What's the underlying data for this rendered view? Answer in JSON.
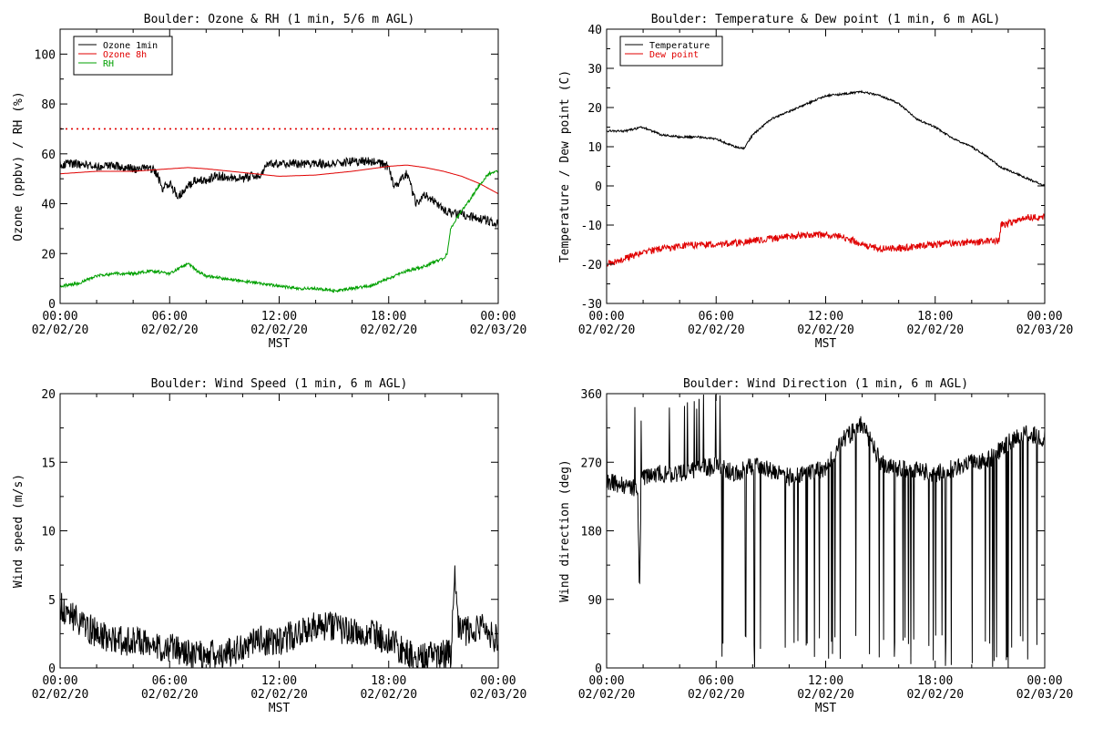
{
  "figure": {
    "colors": {
      "black": "#000000",
      "red": "#e00000",
      "green": "#00a000"
    }
  },
  "chart_data": [
    {
      "id": "ozone_rh",
      "type": "line",
      "title": "Boulder: Ozone & RH (1 min, 5/6 m AGL)",
      "xlabel": "MST",
      "ylabel": "Ozone (ppbv) / RH (%)",
      "xlim": [
        0,
        24
      ],
      "ylim": [
        0,
        110
      ],
      "x_ticks": [
        0,
        6,
        12,
        18,
        24
      ],
      "x_tick_labels": [
        [
          "00:00",
          "02/02/20"
        ],
        [
          "06:00",
          "02/02/20"
        ],
        [
          "12:00",
          "02/02/20"
        ],
        [
          "18:00",
          "02/02/20"
        ],
        [
          "00:00",
          "02/03/20"
        ]
      ],
      "y_ticks": [
        0,
        20,
        40,
        60,
        80,
        100
      ],
      "y_tick_labels": [
        "0",
        "20",
        "40",
        "60",
        "80",
        "100"
      ],
      "legend_position": "top-left",
      "reference_line": {
        "y": 70,
        "style": "dotted",
        "color": "#e00000"
      },
      "series": [
        {
          "name": "Ozone 1min",
          "color": "#000000",
          "noise": 1.8,
          "points": [
            [
              0,
              56
            ],
            [
              1,
              56
            ],
            [
              2,
              55
            ],
            [
              3,
              55
            ],
            [
              4,
              54
            ],
            [
              5,
              54
            ],
            [
              5.3,
              52
            ],
            [
              5.6,
              46
            ],
            [
              6,
              48
            ],
            [
              6.5,
              43
            ],
            [
              7,
              47
            ],
            [
              7.5,
              50
            ],
            [
              8,
              49
            ],
            [
              8.5,
              51
            ],
            [
              9,
              51
            ],
            [
              10,
              50
            ],
            [
              10.5,
              51
            ],
            [
              11,
              52
            ],
            [
              11.3,
              56
            ],
            [
              12,
              56
            ],
            [
              13,
              56
            ],
            [
              14,
              56
            ],
            [
              15,
              56
            ],
            [
              16,
              57
            ],
            [
              17,
              57
            ],
            [
              17.5,
              56
            ],
            [
              18,
              55
            ],
            [
              18.3,
              46
            ],
            [
              18.6,
              49
            ],
            [
              19,
              52
            ],
            [
              19.5,
              40
            ],
            [
              20,
              44
            ],
            [
              21,
              38
            ],
            [
              21.5,
              36
            ],
            [
              22,
              36
            ],
            [
              22.5,
              35
            ],
            [
              23,
              34
            ],
            [
              23.5,
              33
            ],
            [
              24,
              32
            ]
          ]
        },
        {
          "name": "Ozone 8h",
          "color": "#e00000",
          "noise": 0,
          "points": [
            [
              0,
              52
            ],
            [
              2,
              53
            ],
            [
              4,
              53
            ],
            [
              6,
              54
            ],
            [
              7,
              54.5
            ],
            [
              8,
              54
            ],
            [
              10,
              52.5
            ],
            [
              12,
              51
            ],
            [
              14,
              51.5
            ],
            [
              16,
              53
            ],
            [
              18,
              55
            ],
            [
              19,
              55.5
            ],
            [
              20,
              54.5
            ],
            [
              21,
              53
            ],
            [
              22,
              51
            ],
            [
              23,
              48
            ],
            [
              24,
              44
            ]
          ]
        },
        {
          "name": "RH",
          "color": "#00a000",
          "noise": 0.6,
          "points": [
            [
              0,
              7
            ],
            [
              1,
              8
            ],
            [
              2,
              11
            ],
            [
              3,
              12
            ],
            [
              4,
              12
            ],
            [
              5,
              13
            ],
            [
              6,
              12
            ],
            [
              6.5,
              14
            ],
            [
              7,
              16
            ],
            [
              7.5,
              13
            ],
            [
              8,
              11
            ],
            [
              9,
              10
            ],
            [
              10,
              9
            ],
            [
              11,
              8
            ],
            [
              12,
              7
            ],
            [
              13,
              6
            ],
            [
              14,
              6
            ],
            [
              15,
              5
            ],
            [
              16,
              6
            ],
            [
              17,
              7
            ],
            [
              18,
              10
            ],
            [
              19,
              13
            ],
            [
              20,
              15
            ],
            [
              21,
              18
            ],
            [
              21.2,
              20
            ],
            [
              21.4,
              30
            ],
            [
              21.7,
              34
            ],
            [
              22,
              37
            ],
            [
              22.5,
              42
            ],
            [
              23,
              48
            ],
            [
              23.5,
              52
            ],
            [
              24,
              53
            ]
          ]
        }
      ]
    },
    {
      "id": "temp_dew",
      "type": "line",
      "title": "Boulder: Temperature & Dew point (1 min, 6 m AGL)",
      "xlabel": "MST",
      "ylabel": "Temperature / Dew point (C)",
      "xlim": [
        0,
        24
      ],
      "ylim": [
        -30,
        40
      ],
      "x_ticks": [
        0,
        6,
        12,
        18,
        24
      ],
      "x_tick_labels": [
        [
          "00:00",
          "02/02/20"
        ],
        [
          "06:00",
          "02/02/20"
        ],
        [
          "12:00",
          "02/02/20"
        ],
        [
          "18:00",
          "02/02/20"
        ],
        [
          "00:00",
          "02/03/20"
        ]
      ],
      "y_ticks": [
        -30,
        -20,
        -10,
        0,
        10,
        20,
        30,
        40
      ],
      "y_tick_labels": [
        "-30",
        "-20",
        "-10",
        "0",
        "10",
        "20",
        "30",
        "40"
      ],
      "legend_position": "top-left",
      "series": [
        {
          "name": "Temperature",
          "color": "#000000",
          "noise": 0.25,
          "points": [
            [
              0,
              14
            ],
            [
              1,
              14
            ],
            [
              2,
              15
            ],
            [
              3,
              13
            ],
            [
              4,
              12.5
            ],
            [
              5,
              12.5
            ],
            [
              6,
              12
            ],
            [
              6.5,
              11
            ],
            [
              7,
              10
            ],
            [
              7.5,
              9.5
            ],
            [
              8,
              13
            ],
            [
              9,
              17
            ],
            [
              10,
              19
            ],
            [
              11,
              21
            ],
            [
              12,
              23
            ],
            [
              13,
              23.5
            ],
            [
              14,
              24
            ],
            [
              15,
              23
            ],
            [
              16,
              21
            ],
            [
              17,
              17
            ],
            [
              18,
              15
            ],
            [
              19,
              12
            ],
            [
              20,
              10
            ],
            [
              21,
              7
            ],
            [
              21.5,
              5
            ],
            [
              22,
              4
            ],
            [
              23,
              2
            ],
            [
              24,
              0
            ]
          ]
        },
        {
          "name": "Dew point",
          "color": "#e00000",
          "noise": 0.9,
          "points": [
            [
              0,
              -20
            ],
            [
              1,
              -18.5
            ],
            [
              2,
              -17
            ],
            [
              3,
              -16
            ],
            [
              4,
              -15.5
            ],
            [
              5,
              -15
            ],
            [
              6,
              -15
            ],
            [
              7,
              -14.5
            ],
            [
              8,
              -14
            ],
            [
              9,
              -13.5
            ],
            [
              10,
              -13
            ],
            [
              11,
              -12.5
            ],
            [
              12,
              -12.5
            ],
            [
              13,
              -13
            ],
            [
              14,
              -15
            ],
            [
              15,
              -16
            ],
            [
              16,
              -16
            ],
            [
              17,
              -15.5
            ],
            [
              18,
              -15
            ],
            [
              19,
              -14.5
            ],
            [
              20,
              -14.5
            ],
            [
              21,
              -14
            ],
            [
              21.5,
              -14
            ],
            [
              21.6,
              -10
            ],
            [
              22,
              -9.5
            ],
            [
              23,
              -8
            ],
            [
              24,
              -8
            ]
          ]
        }
      ]
    },
    {
      "id": "wind_speed",
      "type": "line",
      "title": "Boulder: Wind Speed (1 min, 6 m AGL)",
      "xlabel": "MST",
      "ylabel": "Wind speed (m/s)",
      "xlim": [
        0,
        24
      ],
      "ylim": [
        0,
        20
      ],
      "x_ticks": [
        0,
        6,
        12,
        18,
        24
      ],
      "x_tick_labels": [
        [
          "00:00",
          "02/02/20"
        ],
        [
          "06:00",
          "02/02/20"
        ],
        [
          "12:00",
          "02/02/20"
        ],
        [
          "18:00",
          "02/02/20"
        ],
        [
          "00:00",
          "02/03/20"
        ]
      ],
      "y_ticks": [
        0,
        5,
        10,
        15,
        20
      ],
      "y_tick_labels": [
        "0",
        "5",
        "10",
        "15",
        "20"
      ],
      "series": [
        {
          "name": "",
          "color": "#000000",
          "noise": 1.1,
          "clip_min": 0,
          "points": [
            [
              0,
              4.5
            ],
            [
              1,
              3.5
            ],
            [
              2,
              2.5
            ],
            [
              3,
              2
            ],
            [
              4,
              2
            ],
            [
              5,
              1.5
            ],
            [
              6,
              1.5
            ],
            [
              7,
              1
            ],
            [
              8,
              1
            ],
            [
              9,
              1
            ],
            [
              10,
              1.5
            ],
            [
              11,
              2
            ],
            [
              12,
              2
            ],
            [
              13,
              2.5
            ],
            [
              14,
              3
            ],
            [
              15,
              3
            ],
            [
              16,
              2.5
            ],
            [
              17,
              2.5
            ],
            [
              18,
              2
            ],
            [
              19,
              1
            ],
            [
              20,
              0.8
            ],
            [
              21,
              1
            ],
            [
              21.4,
              1
            ],
            [
              21.6,
              7
            ],
            [
              21.8,
              3
            ],
            [
              22,
              2.5
            ],
            [
              23,
              3
            ],
            [
              24,
              2
            ]
          ]
        }
      ]
    },
    {
      "id": "wind_dir",
      "type": "line",
      "title": "Boulder: Wind Direction (1 min, 6 m AGL)",
      "xlabel": "MST",
      "ylabel": "Wind direction (deg)",
      "xlim": [
        0,
        24
      ],
      "ylim": [
        0,
        360
      ],
      "x_ticks": [
        0,
        6,
        12,
        18,
        24
      ],
      "x_tick_labels": [
        [
          "00:00",
          "02/02/20"
        ],
        [
          "06:00",
          "02/02/20"
        ],
        [
          "12:00",
          "02/02/20"
        ],
        [
          "18:00",
          "02/02/20"
        ],
        [
          "00:00",
          "02/03/20"
        ]
      ],
      "y_ticks": [
        0,
        90,
        180,
        270,
        360
      ],
      "y_tick_labels": [
        "0",
        "90",
        "180",
        "270",
        "360"
      ],
      "series": [
        {
          "name": "",
          "color": "#000000",
          "noise": 12,
          "wraparound": true,
          "points": [
            [
              0,
              245
            ],
            [
              1,
              240
            ],
            [
              1.7,
              235
            ],
            [
              1.8,
              95
            ],
            [
              1.9,
              240
            ],
            [
              2,
              250
            ],
            [
              3,
              255
            ],
            [
              4,
              255
            ],
            [
              5,
              260
            ],
            [
              6,
              265
            ],
            [
              6.5,
              260
            ],
            [
              7,
              255
            ],
            [
              8,
              265
            ],
            [
              9,
              260
            ],
            [
              10,
              250
            ],
            [
              11,
              255
            ],
            [
              12,
              262
            ],
            [
              13,
              300
            ],
            [
              14,
              320
            ],
            [
              15,
              270
            ],
            [
              16,
              262
            ],
            [
              17,
              260
            ],
            [
              18,
              255
            ],
            [
              19,
              262
            ],
            [
              20,
              270
            ],
            [
              21,
              275
            ],
            [
              22,
              295
            ],
            [
              23,
              310
            ],
            [
              24,
              300
            ]
          ]
        }
      ]
    }
  ]
}
